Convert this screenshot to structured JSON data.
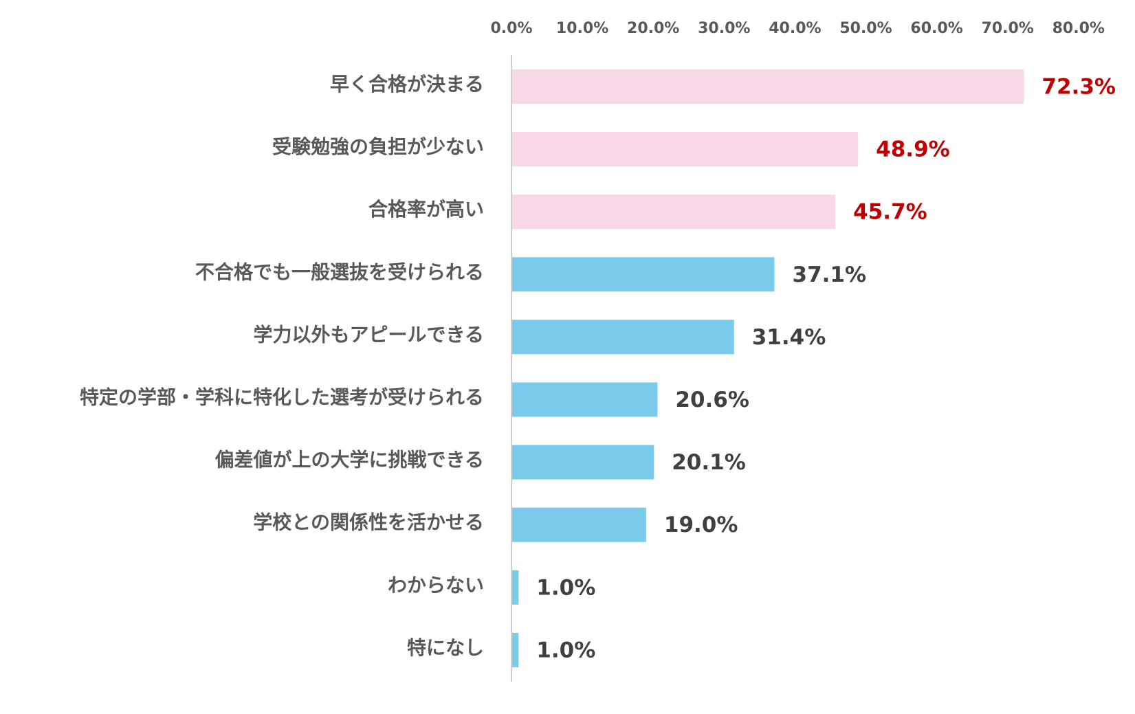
{
  "chart_data": {
    "type": "bar",
    "orientation": "horizontal",
    "categories": [
      "早く合格が決まる",
      "受験勉強の負担が少ない",
      "合格率が高い",
      "不合格でも一般選抜を受けられる",
      "学力以外もアピールできる",
      "特定の学部・学科に特化した選考が受けられる",
      "偏差値が上の大学に挑戦できる",
      "学校との関係性を活かせる",
      "わからない",
      "特になし"
    ],
    "values": [
      72.3,
      48.9,
      45.7,
      37.1,
      31.4,
      20.6,
      20.1,
      19.0,
      1.0,
      1.0
    ],
    "value_labels": [
      "72.3%",
      "48.9%",
      "45.7%",
      "37.1%",
      "31.4%",
      "20.6%",
      "20.1%",
      "19.0%",
      "1.0%",
      "1.0%"
    ],
    "highlighted": [
      true,
      true,
      true,
      false,
      false,
      false,
      false,
      false,
      false,
      false
    ],
    "xlim": [
      0,
      80
    ],
    "x_ticks": [
      0,
      10,
      20,
      30,
      40,
      50,
      60,
      70,
      80
    ],
    "x_tick_labels": [
      "0.0%",
      "10.0%",
      "20.0%",
      "30.0%",
      "40.0%",
      "50.0%",
      "60.0%",
      "70.0%",
      "80.0%"
    ],
    "x_axis_position": "top",
    "grid": false,
    "title": "",
    "xlabel": "",
    "ylabel": "",
    "colors": {
      "highlight_bar": "#f8d7e6",
      "normal_bar": "#7acbeb",
      "highlight_label": "#c00000",
      "normal_label": "#404040",
      "category_text": "#595959",
      "tick_text": "#595959",
      "axis_line": "#d0d0d0"
    }
  }
}
